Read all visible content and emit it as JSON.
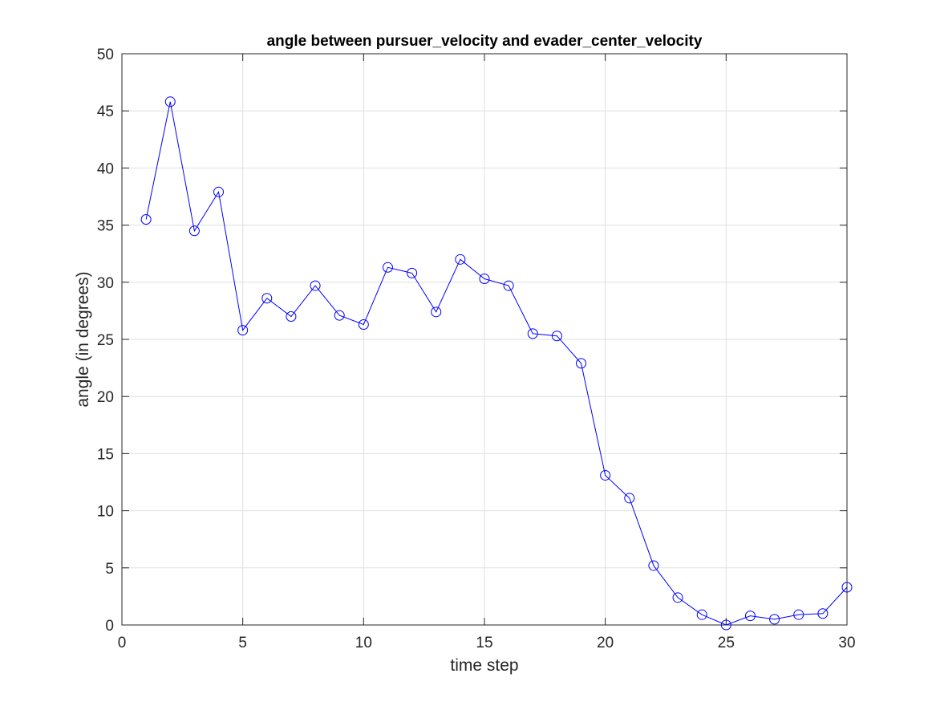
{
  "chart_data": {
    "type": "line",
    "title": "angle between pursuer_velocity and evader_center_velocity",
    "xlabel": "time step",
    "ylabel": "angle (in degrees)",
    "xlim": [
      0,
      30
    ],
    "ylim": [
      0,
      50
    ],
    "xticks": [
      0,
      5,
      10,
      15,
      20,
      25,
      30
    ],
    "yticks": [
      0,
      5,
      10,
      15,
      20,
      25,
      30,
      35,
      40,
      45,
      50
    ],
    "grid": true,
    "legend": "none",
    "marker": "circle",
    "series": [
      {
        "color": "#0000ff",
        "x": [
          1,
          2,
          3,
          4,
          5,
          6,
          7,
          8,
          9,
          10,
          11,
          12,
          13,
          14,
          15,
          16,
          17,
          18,
          19,
          20,
          21,
          22,
          23,
          24,
          25,
          26,
          27,
          28,
          29,
          30
        ],
        "values": [
          35.5,
          45.8,
          34.5,
          37.9,
          25.8,
          28.6,
          27.0,
          29.7,
          27.1,
          26.3,
          31.3,
          30.8,
          27.4,
          32.0,
          30.3,
          29.7,
          25.5,
          25.3,
          22.9,
          13.1,
          11.1,
          5.2,
          2.4,
          0.9,
          0.0,
          0.8,
          0.5,
          0.9,
          1.0,
          3.3
        ]
      }
    ]
  }
}
